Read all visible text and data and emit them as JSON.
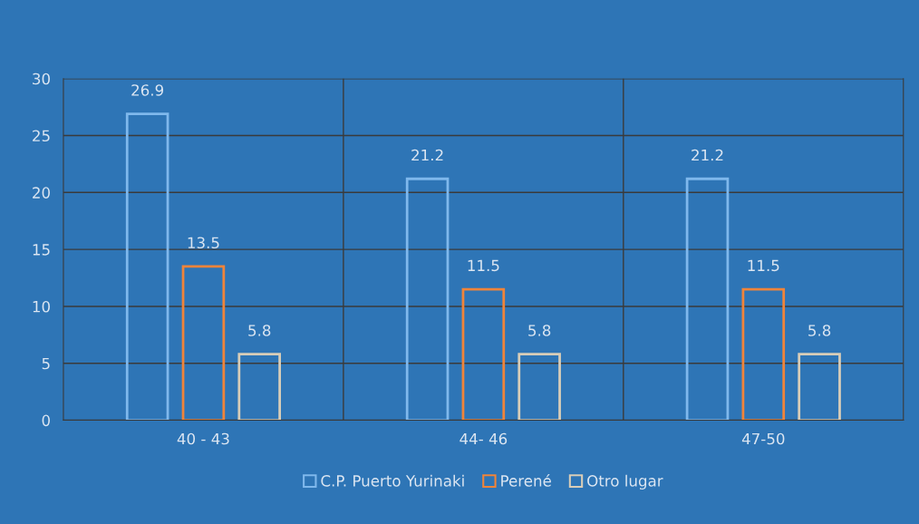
{
  "chart_data": {
    "type": "bar",
    "categories": [
      "40 - 43",
      "44- 46",
      "47-50"
    ],
    "series": [
      {
        "name": "C.P. Puerto Yurinaki",
        "color": "#7fb8ec",
        "values": [
          26.9,
          21.2,
          21.2
        ]
      },
      {
        "name": "Perené",
        "color": "#f0843a",
        "values": [
          13.5,
          11.5,
          11.5
        ]
      },
      {
        "name": "Otro lugar",
        "color": "#d8cdb8",
        "values": [
          5.8,
          5.8,
          5.8
        ]
      }
    ],
    "ylim": [
      0,
      30
    ],
    "yticks": [
      0,
      5,
      10,
      15,
      20,
      25,
      30
    ],
    "grid": true,
    "legend": "bottom",
    "data_labels": true
  }
}
